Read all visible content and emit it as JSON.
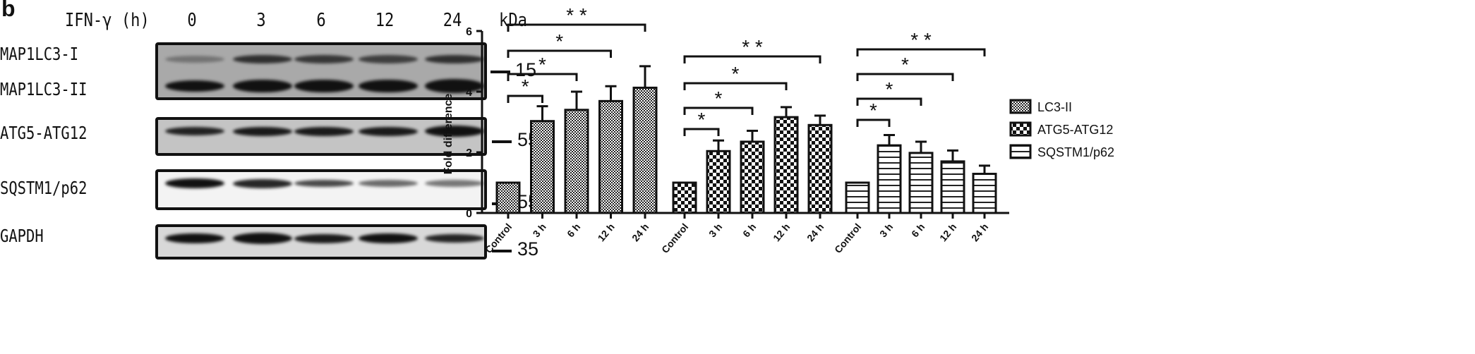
{
  "panel_label": "b",
  "blot": {
    "treatment_label": "IFN-γ (h)",
    "lanes": [
      "0",
      "3",
      "6",
      "12",
      "24"
    ],
    "unit_label": "kDa",
    "rows": [
      {
        "labels": [
          "MAP1LC3-I",
          "MAP1LC3-II"
        ],
        "marker": "15"
      },
      {
        "labels": [
          "ATG5-ATG12"
        ],
        "marker": "55"
      },
      {
        "labels": [
          "SQSTM1/p62"
        ],
        "marker": "55"
      },
      {
        "labels": [
          "GAPDH"
        ],
        "marker": "35"
      }
    ]
  },
  "chart_data": {
    "type": "bar",
    "ylabel": "Fold difference",
    "xlabel": "",
    "ylim": [
      0,
      6
    ],
    "yticks": [
      "0",
      "2",
      "4",
      "6"
    ],
    "categories": [
      "Control",
      "3 h",
      "6 h",
      "12 h",
      "24 h"
    ],
    "legend_position": "right",
    "grid": false,
    "series": [
      {
        "name": "LC3-II",
        "pattern": "fine-checker",
        "values": [
          1.0,
          3.03,
          3.4,
          3.69,
          4.13
        ],
        "error_upper": [
          1.0,
          3.52,
          4.0,
          4.18,
          4.84
        ]
      },
      {
        "name": "ATG5-ATG12",
        "pattern": "coarse-checker",
        "values": [
          1.0,
          2.04,
          2.35,
          3.16,
          2.9
        ],
        "error_upper": [
          1.0,
          2.39,
          2.71,
          3.49,
          3.21
        ]
      },
      {
        "name": "SQSTM1/p62",
        "pattern": "horizontal-lines",
        "values": [
          1.0,
          2.23,
          1.98,
          1.7,
          1.29
        ],
        "error_upper": [
          1.0,
          2.57,
          2.35,
          2.06,
          1.56
        ]
      }
    ],
    "significance": [
      {
        "compare": [
          "Control",
          "3 h"
        ],
        "label": "*"
      },
      {
        "compare": [
          "Control",
          "6 h"
        ],
        "label": "*"
      },
      {
        "compare": [
          "Control",
          "12 h"
        ],
        "label": "*"
      },
      {
        "compare": [
          "Control",
          "24 h"
        ],
        "label": "* *"
      }
    ]
  }
}
